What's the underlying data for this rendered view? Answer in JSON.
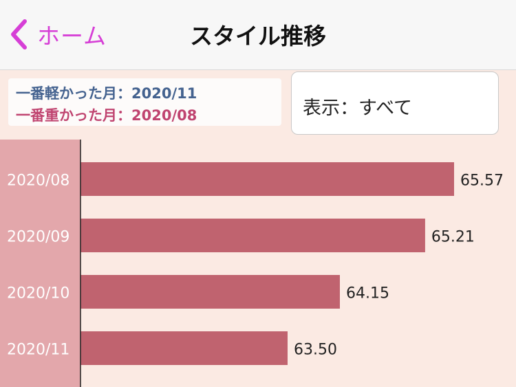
{
  "nav": {
    "back_label": "ホーム",
    "title": "スタイル推移",
    "tint": "#d63fd6"
  },
  "summary": {
    "lightest": "一番軽かった月：2020/11",
    "heaviest": "一番重かった月：2020/08",
    "light_color": "#44628f",
    "heavy_color": "#c04470"
  },
  "filter": {
    "label": "表示：すべて"
  },
  "chart_data": {
    "type": "bar",
    "orientation": "horizontal",
    "categories": [
      "2020/08",
      "2020/09",
      "2020/10",
      "2020/11"
    ],
    "values": [
      65.57,
      65.21,
      64.15,
      63.5
    ],
    "labels": [
      "65.57",
      "65.21",
      "64.15",
      "63.50"
    ],
    "bar_color": "#c0636f",
    "axis_band_color": "#e3a7ab",
    "background": "#fbeae3"
  }
}
